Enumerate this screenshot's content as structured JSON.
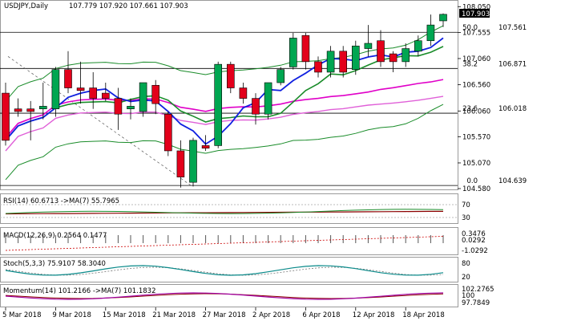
{
  "chart_data": {
    "type": "candlestick",
    "symbol_label": "USDJPY,Daily",
    "ohlc_label": "107.779 107.920 107.661 107.903",
    "colors": {
      "up": "#00a651",
      "down": "#e3001b",
      "bb": "#1a8c2a",
      "ma_blue": "#1020e0",
      "ma_green": "#1a8c2a",
      "ma_magenta": "#e000c8",
      "ma_pink": "#e060d8"
    },
    "price_axis": {
      "min": 104.58,
      "max": 108.1,
      "ticks": [
        "108.050",
        "107.555",
        "107.060",
        "106.560",
        "106.060",
        "105.570",
        "105.070",
        "104.580"
      ]
    },
    "current_price": "107.903",
    "x_labels": [
      "5 Mar 2018",
      "9 Mar 2018",
      "15 Mar 2018",
      "21 Mar 2018",
      "27 Mar 2018",
      "2 Apr 2018",
      "6 Apr 2018",
      "12 Apr 2018",
      "18 Apr 2018"
    ],
    "fib_levels": [
      {
        "label": "50.0",
        "value": "107.561",
        "price": 107.561
      },
      {
        "label": "38.2",
        "value": "106.871",
        "price": 106.871
      },
      {
        "label": "23.6",
        "value": "106.018",
        "price": 106.018
      },
      {
        "label": "0.0",
        "value": "104.639",
        "price": 104.639
      }
    ],
    "candles": [
      {
        "o": 106.4,
        "h": 106.6,
        "l": 105.4,
        "c": 105.5
      },
      {
        "o": 106.1,
        "h": 106.3,
        "l": 105.95,
        "c": 106.05
      },
      {
        "o": 106.1,
        "h": 106.25,
        "l": 105.5,
        "c": 106.05
      },
      {
        "o": 106.1,
        "h": 106.6,
        "l": 105.9,
        "c": 106.15
      },
      {
        "o": 106.1,
        "h": 106.9,
        "l": 105.95,
        "c": 106.85
      },
      {
        "o": 106.85,
        "h": 107.2,
        "l": 106.4,
        "c": 106.5
      },
      {
        "o": 106.5,
        "h": 107.0,
        "l": 106.2,
        "c": 106.45
      },
      {
        "o": 106.5,
        "h": 106.8,
        "l": 106.1,
        "c": 106.3
      },
      {
        "o": 106.4,
        "h": 106.6,
        "l": 106.25,
        "c": 106.3
      },
      {
        "o": 106.3,
        "h": 106.5,
        "l": 105.7,
        "c": 106.0
      },
      {
        "o": 106.1,
        "h": 106.3,
        "l": 105.9,
        "c": 106.15
      },
      {
        "o": 106.05,
        "h": 106.6,
        "l": 105.95,
        "c": 106.6
      },
      {
        "o": 106.55,
        "h": 106.65,
        "l": 106.0,
        "c": 106.2
      },
      {
        "o": 106.0,
        "h": 106.05,
        "l": 105.2,
        "c": 105.3
      },
      {
        "o": 105.3,
        "h": 105.5,
        "l": 104.6,
        "c": 104.8
      },
      {
        "o": 104.7,
        "h": 105.55,
        "l": 104.62,
        "c": 105.5
      },
      {
        "o": 105.4,
        "h": 105.6,
        "l": 105.3,
        "c": 105.35
      },
      {
        "o": 105.4,
        "h": 107.0,
        "l": 105.35,
        "c": 106.95
      },
      {
        "o": 106.95,
        "h": 107.0,
        "l": 106.4,
        "c": 106.5
      },
      {
        "o": 106.5,
        "h": 106.6,
        "l": 106.2,
        "c": 106.3
      },
      {
        "o": 106.3,
        "h": 106.4,
        "l": 105.8,
        "c": 106.0
      },
      {
        "o": 106.0,
        "h": 106.6,
        "l": 105.9,
        "c": 106.6
      },
      {
        "o": 106.6,
        "h": 106.9,
        "l": 106.55,
        "c": 106.85
      },
      {
        "o": 106.9,
        "h": 107.55,
        "l": 106.85,
        "c": 107.45
      },
      {
        "o": 107.5,
        "h": 107.55,
        "l": 106.85,
        "c": 107.0
      },
      {
        "o": 107.0,
        "h": 107.1,
        "l": 106.7,
        "c": 106.8
      },
      {
        "o": 106.8,
        "h": 107.3,
        "l": 106.7,
        "c": 107.2
      },
      {
        "o": 107.2,
        "h": 107.3,
        "l": 106.7,
        "c": 106.8
      },
      {
        "o": 106.85,
        "h": 107.4,
        "l": 106.75,
        "c": 107.3
      },
      {
        "o": 107.25,
        "h": 107.7,
        "l": 107.1,
        "c": 107.35
      },
      {
        "o": 107.4,
        "h": 107.6,
        "l": 106.9,
        "c": 107.0
      },
      {
        "o": 107.15,
        "h": 107.2,
        "l": 106.8,
        "c": 107.0
      },
      {
        "o": 107.0,
        "h": 107.35,
        "l": 106.9,
        "c": 107.25
      },
      {
        "o": 107.2,
        "h": 107.5,
        "l": 107.1,
        "c": 107.4
      },
      {
        "o": 107.4,
        "h": 107.9,
        "l": 107.3,
        "c": 107.7
      },
      {
        "o": 107.779,
        "h": 107.92,
        "l": 107.661,
        "c": 107.903
      }
    ],
    "indicators": {
      "rsi": {
        "label": "RSI(14) 60.6713  ->MA(7) 55.7965",
        "levels": [
          "70",
          "30"
        ]
      },
      "macd": {
        "label": "MACD(12,26,9) 0.2564  0.1477",
        "levels": [
          "0.3476",
          "0.0292",
          "-1.0292"
        ]
      },
      "stoch": {
        "label": "Stoch(5,3,3) 75.9107 58.3040",
        "levels": [
          "80",
          "20"
        ]
      },
      "momentum": {
        "label": "Momentum(14) 101.2166  ->MA(7) 101.1832",
        "levels": [
          "102.2765",
          "100",
          "97.7849"
        ]
      }
    }
  }
}
